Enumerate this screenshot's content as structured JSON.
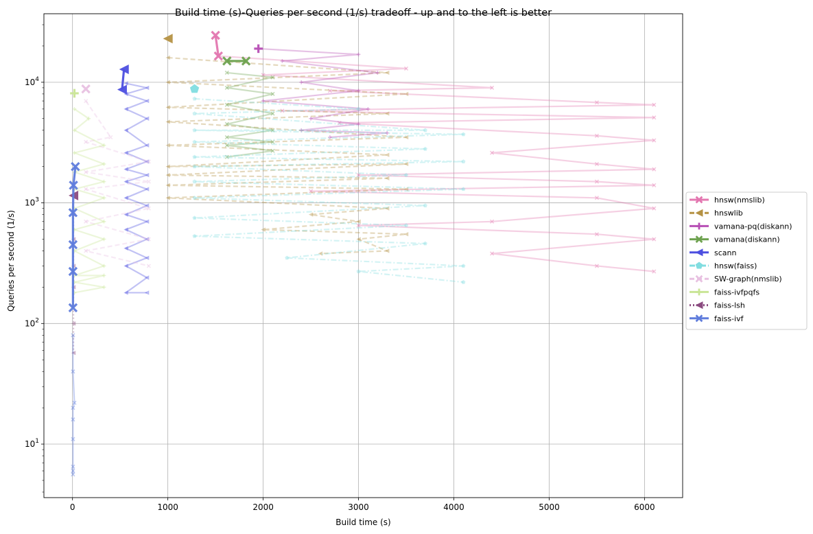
{
  "chart_data": {
    "type": "line",
    "title": "Build time (s)-Queries per second (1/s) tradeoff - up and to the left is better",
    "xlabel": "Build time (s)",
    "ylabel": "Queries per second (1/s)",
    "xlim": [
      -300,
      6400
    ],
    "ylim": [
      3.6,
      37000
    ],
    "yscale": "log",
    "grid": true,
    "legend_position": "center-right",
    "x_ticks": [
      {
        "value": 0,
        "label": "0"
      },
      {
        "value": 1000,
        "label": "1000"
      },
      {
        "value": 2000,
        "label": "2000"
      },
      {
        "value": 3000,
        "label": "3000"
      },
      {
        "value": 4000,
        "label": "4000"
      },
      {
        "value": 5000,
        "label": "5000"
      },
      {
        "value": 6000,
        "label": "6000"
      }
    ],
    "y_ticks": [
      {
        "value": 10,
        "base": "10",
        "exp": "1"
      },
      {
        "value": 100,
        "base": "10",
        "exp": "2"
      },
      {
        "value": 1000,
        "base": "10",
        "exp": "3"
      },
      {
        "value": 10000,
        "base": "10",
        "exp": "4"
      }
    ],
    "series": [
      {
        "name": "hnsw(nmslib)",
        "color": "#e377b0",
        "marker": "x",
        "dash": "solid",
        "pareto": [
          [
            1500,
            24500
          ],
          [
            1530,
            16500
          ]
        ],
        "faded": [
          [
            1530,
            16500
          ],
          [
            3500,
            13000
          ],
          [
            2000,
            11500
          ],
          [
            4400,
            9000
          ],
          [
            2700,
            8500
          ],
          [
            5500,
            6800
          ],
          [
            6100,
            6500
          ],
          [
            2200,
            5800
          ],
          [
            6100,
            5100
          ],
          [
            2800,
            4600
          ],
          [
            5500,
            3600
          ],
          [
            6100,
            3300
          ],
          [
            4400,
            2600
          ],
          [
            5500,
            2100
          ],
          [
            6100,
            1900
          ],
          [
            3000,
            1700
          ],
          [
            5500,
            1500
          ],
          [
            6100,
            1400
          ],
          [
            2500,
            1250
          ],
          [
            5500,
            1100
          ],
          [
            6100,
            900
          ],
          [
            4400,
            700
          ],
          [
            3000,
            650
          ],
          [
            5500,
            550
          ],
          [
            6100,
            500
          ],
          [
            4400,
            380
          ],
          [
            5500,
            300
          ],
          [
            6100,
            270
          ]
        ]
      },
      {
        "name": "hnswlib",
        "color": "#b59244",
        "marker": "triangle-left",
        "dash": "dashed",
        "pareto": [
          [
            1000,
            23000
          ]
        ],
        "faded": [
          [
            1000,
            16000
          ],
          [
            3300,
            12000
          ],
          [
            1000,
            10000
          ],
          [
            3500,
            8000
          ],
          [
            1000,
            6200
          ],
          [
            3300,
            5500
          ],
          [
            1000,
            4700
          ],
          [
            3500,
            3500
          ],
          [
            1000,
            3000
          ],
          [
            3300,
            2500
          ],
          [
            1000,
            2000
          ],
          [
            3500,
            2100
          ],
          [
            1000,
            1700
          ],
          [
            3300,
            1600
          ],
          [
            1000,
            1400
          ],
          [
            3500,
            1300
          ],
          [
            1000,
            1100
          ],
          [
            3300,
            900
          ],
          [
            2500,
            800
          ],
          [
            3000,
            700
          ],
          [
            2000,
            600
          ],
          [
            3500,
            550
          ],
          [
            3000,
            500
          ],
          [
            3300,
            400
          ],
          [
            2600,
            380
          ]
        ]
      },
      {
        "name": "vamana-pq(diskann)",
        "color": "#b74fb5",
        "marker": "plus",
        "dash": "solid",
        "pareto": [
          [
            1950,
            19000
          ]
        ],
        "faded": [
          [
            1950,
            19000
          ],
          [
            3000,
            17000
          ],
          [
            2200,
            15000
          ],
          [
            3200,
            12000
          ],
          [
            2400,
            10000
          ],
          [
            3000,
            8500
          ],
          [
            2000,
            7000
          ],
          [
            3100,
            6000
          ],
          [
            2500,
            5000
          ],
          [
            3000,
            4500
          ],
          [
            2400,
            4000
          ],
          [
            3300,
            3800
          ],
          [
            2700,
            3500
          ]
        ]
      },
      {
        "name": "vamana(diskann)",
        "color": "#6ea24f",
        "marker": "x",
        "dash": "solid",
        "pareto": [
          [
            1620,
            15000
          ],
          [
            1820,
            15000
          ]
        ],
        "faded": [
          [
            1620,
            12000
          ],
          [
            2100,
            11000
          ],
          [
            1620,
            9000
          ],
          [
            2100,
            8000
          ],
          [
            1620,
            6500
          ],
          [
            2100,
            5500
          ],
          [
            1620,
            4500
          ],
          [
            2100,
            4000
          ],
          [
            1620,
            3500
          ],
          [
            2100,
            3200
          ],
          [
            1620,
            3000
          ],
          [
            2100,
            2700
          ],
          [
            1620,
            2400
          ]
        ]
      },
      {
        "name": "scann",
        "color": "#4d4fe0",
        "marker": "triangle-left",
        "dash": "solid",
        "pareto": [
          [
            540,
            12800
          ],
          [
            520,
            8700
          ]
        ],
        "faded": [
          [
            560,
            9800
          ],
          [
            780,
            9000
          ],
          [
            560,
            8000
          ],
          [
            780,
            7000
          ],
          [
            560,
            6000
          ],
          [
            780,
            5000
          ],
          [
            560,
            4000
          ],
          [
            780,
            3000
          ],
          [
            560,
            2600
          ],
          [
            780,
            2200
          ],
          [
            560,
            1900
          ],
          [
            780,
            1700
          ],
          [
            560,
            1500
          ],
          [
            780,
            1300
          ],
          [
            560,
            1100
          ],
          [
            780,
            950
          ],
          [
            560,
            800
          ],
          [
            780,
            700
          ],
          [
            560,
            600
          ],
          [
            780,
            500
          ],
          [
            560,
            420
          ],
          [
            780,
            350
          ],
          [
            560,
            300
          ],
          [
            780,
            240
          ],
          [
            560,
            180
          ],
          [
            780,
            180
          ]
        ]
      },
      {
        "name": "hnsw(faiss)",
        "color": "#81dde0",
        "marker": "pentagon",
        "dash": "dashdot",
        "pareto": [
          [
            1280,
            8800
          ]
        ],
        "faded": [
          [
            1280,
            7300
          ],
          [
            3000,
            6000
          ],
          [
            1280,
            5500
          ],
          [
            3700,
            4000
          ],
          [
            1280,
            4000
          ],
          [
            4100,
            3700
          ],
          [
            1280,
            3200
          ],
          [
            3700,
            2800
          ],
          [
            1280,
            2400
          ],
          [
            4100,
            2200
          ],
          [
            1280,
            2000
          ],
          [
            3500,
            1700
          ],
          [
            1280,
            1500
          ],
          [
            4100,
            1300
          ],
          [
            1280,
            1100
          ],
          [
            3700,
            950
          ],
          [
            1280,
            750
          ],
          [
            3500,
            650
          ],
          [
            1280,
            530
          ],
          [
            3700,
            460
          ],
          [
            2250,
            350
          ],
          [
            4100,
            300
          ],
          [
            3000,
            270
          ],
          [
            4100,
            220
          ]
        ]
      },
      {
        "name": "SW-graph(nmslib)",
        "color": "#e8c1e1",
        "marker": "x",
        "dash": "dashed",
        "pareto": [
          [
            140,
            8800
          ]
        ],
        "faded": [
          [
            140,
            7000
          ],
          [
            400,
            3500
          ],
          [
            140,
            3200
          ],
          [
            800,
            2200
          ],
          [
            140,
            1800
          ],
          [
            800,
            1500
          ],
          [
            140,
            1300
          ],
          [
            800,
            900
          ],
          [
            140,
            700
          ],
          [
            800,
            500
          ],
          [
            140,
            400
          ],
          [
            800,
            300
          ]
        ]
      },
      {
        "name": "faiss-ivfpqfs",
        "color": "#c9e596",
        "marker": "plus",
        "dash": "solid",
        "pareto": [
          [
            20,
            8100
          ]
        ],
        "faded": [
          [
            20,
            6000
          ],
          [
            170,
            5000
          ],
          [
            20,
            4000
          ],
          [
            330,
            3000
          ],
          [
            20,
            2600
          ],
          [
            330,
            2100
          ],
          [
            20,
            1800
          ],
          [
            330,
            1500
          ],
          [
            20,
            1300
          ],
          [
            330,
            1100
          ],
          [
            20,
            900
          ],
          [
            330,
            700
          ],
          [
            20,
            600
          ],
          [
            330,
            500
          ],
          [
            20,
            400
          ],
          [
            330,
            300
          ],
          [
            20,
            250
          ],
          [
            330,
            250
          ],
          [
            20,
            220
          ],
          [
            330,
            200
          ],
          [
            20,
            180
          ]
        ]
      },
      {
        "name": "faiss-lsh",
        "color": "#8b4b80",
        "marker": "triangle-left",
        "dash": "dotted",
        "pareto": [
          [
            10,
            1150
          ]
        ],
        "faded": [
          [
            10,
            800
          ],
          [
            10,
            500
          ],
          [
            10,
            300
          ],
          [
            10,
            200
          ],
          [
            10,
            100
          ],
          [
            10,
            57
          ]
        ]
      },
      {
        "name": "faiss-ivf",
        "color": "#5f7cdc",
        "marker": "x",
        "dash": "solid",
        "pareto": [
          [
            30,
            2000
          ],
          [
            10,
            1400
          ],
          [
            5,
            830
          ],
          [
            5,
            450
          ],
          [
            5,
            270
          ],
          [
            5,
            135
          ]
        ],
        "faded": [
          [
            5,
            80
          ],
          [
            5,
            40
          ],
          [
            20,
            22
          ],
          [
            5,
            20
          ],
          [
            5,
            16
          ],
          [
            5,
            11
          ],
          [
            5,
            6.5
          ],
          [
            5,
            6
          ],
          [
            5,
            5.6
          ]
        ]
      }
    ]
  }
}
